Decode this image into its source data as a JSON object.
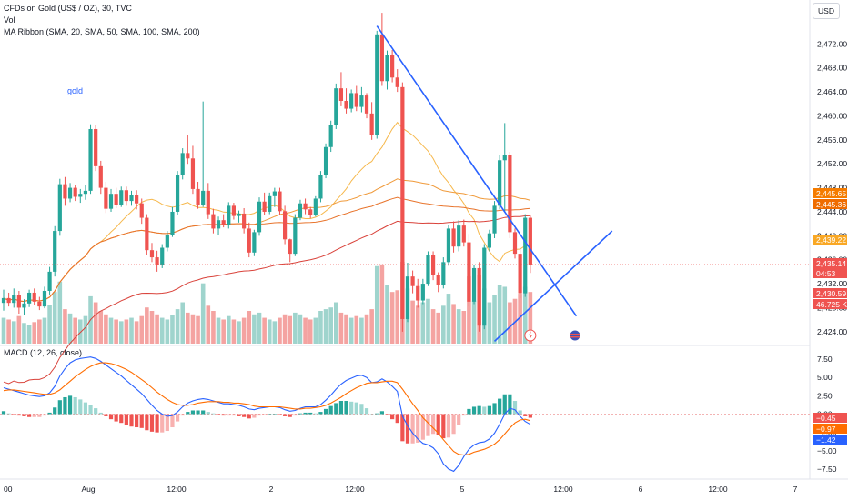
{
  "header": {
    "title": "CFDs on Gold (US$ / OZ), 30, TVC",
    "indicator_vol": "Vol",
    "indicator_ma": "MA Ribbon (SMA, 20, SMA, 50, SMA, 100, SMA, 200)",
    "currency_button": "USD"
  },
  "annotation_text": "gold",
  "colors": {
    "up": "#26a69a",
    "down": "#ef5350",
    "vol_up": "#9fd4cd",
    "vol_down": "#f4a3a1",
    "ma20": "#f6b84c",
    "ma50": "#f09a3a",
    "ma100": "#e8742c",
    "ma200": "#d9423a",
    "trendline": "#2962ff",
    "macd": "#2962ff",
    "signal": "#ff6d00",
    "hist_up": "#26a69a",
    "hist_down": "#ef5350"
  },
  "chart_data": [
    {
      "type": "candlestick",
      "title": "CFDs on Gold (US$ / OZ), 30, TVC",
      "ylim": [
        2422,
        2476
      ],
      "y_ticks": [
        "2,472.00",
        "2,468.00",
        "2,464.00",
        "2,460.00",
        "2,456.00",
        "2,452.00",
        "2,448.00",
        "2,444.00",
        "2,440.00",
        "2,436.00",
        "2,432.00",
        "2,428.00",
        "2,424.00"
      ],
      "x_tick_labels": [
        "00",
        "Aug",
        "12:00",
        "2",
        "12:00",
        "5",
        "12:00",
        "6",
        "12:00",
        "7"
      ],
      "candles": [
        [
          2428.8,
          2431.0,
          2427.5,
          2429.6
        ],
        [
          2429.6,
          2430.5,
          2428.2,
          2428.8
        ],
        [
          2428.8,
          2431.2,
          2428.0,
          2430.1
        ],
        [
          2430.1,
          2430.8,
          2427.0,
          2428.0
        ],
        [
          2428.0,
          2429.4,
          2426.8,
          2428.7
        ],
        [
          2428.7,
          2431.0,
          2428.1,
          2430.5
        ],
        [
          2430.5,
          2431.2,
          2428.5,
          2429.0
        ],
        [
          2429.0,
          2429.8,
          2427.6,
          2428.2
        ],
        [
          2428.2,
          2431.5,
          2427.9,
          2430.8
        ],
        [
          2430.8,
          2434.8,
          2430.2,
          2434.0
        ],
        [
          2434.0,
          2441.6,
          2433.2,
          2440.8
        ],
        [
          2440.8,
          2449.5,
          2440.0,
          2448.6
        ],
        [
          2448.6,
          2449.8,
          2445.0,
          2446.2
        ],
        [
          2446.2,
          2448.8,
          2445.6,
          2448.0
        ],
        [
          2448.0,
          2448.5,
          2445.8,
          2446.5
        ],
        [
          2446.5,
          2447.8,
          2445.5,
          2447.0
        ],
        [
          2447.0,
          2448.5,
          2446.0,
          2447.5
        ],
        [
          2447.5,
          2458.6,
          2447.0,
          2457.8
        ],
        [
          2457.8,
          2458.5,
          2450.8,
          2451.6
        ],
        [
          2451.6,
          2452.5,
          2447.0,
          2448.0
        ],
        [
          2448.0,
          2449.0,
          2443.8,
          2444.5
        ],
        [
          2444.5,
          2447.8,
          2444.0,
          2447.0
        ],
        [
          2447.0,
          2448.0,
          2444.6,
          2445.2
        ],
        [
          2445.2,
          2448.2,
          2444.8,
          2447.6
        ],
        [
          2447.6,
          2448.2,
          2445.0,
          2445.8
        ],
        [
          2445.8,
          2447.5,
          2445.0,
          2446.8
        ],
        [
          2446.8,
          2447.6,
          2444.4,
          2445.4
        ],
        [
          2445.4,
          2446.2,
          2442.0,
          2443.0
        ],
        [
          2443.0,
          2443.6,
          2436.8,
          2437.6
        ],
        [
          2437.6,
          2438.8,
          2435.6,
          2436.4
        ],
        [
          2436.4,
          2437.5,
          2434.0,
          2435.2
        ],
        [
          2435.2,
          2438.6,
          2434.6,
          2438.0
        ],
        [
          2438.0,
          2440.8,
          2437.4,
          2440.2
        ],
        [
          2440.2,
          2444.8,
          2439.8,
          2444.0
        ],
        [
          2444.0,
          2450.8,
          2443.5,
          2450.2
        ],
        [
          2450.2,
          2454.6,
          2449.4,
          2453.8
        ],
        [
          2453.8,
          2456.8,
          2452.0,
          2452.9
        ],
        [
          2452.9,
          2455.0,
          2447.0,
          2447.8
        ],
        [
          2447.8,
          2449.0,
          2444.5,
          2445.2
        ],
        [
          2445.2,
          2462.4,
          2444.8,
          2447.5
        ],
        [
          2447.5,
          2448.8,
          2442.8,
          2443.6
        ],
        [
          2443.6,
          2444.5,
          2440.4,
          2441.2
        ],
        [
          2441.2,
          2443.2,
          2440.2,
          2442.6
        ],
        [
          2442.6,
          2443.6,
          2441.4,
          2441.8
        ],
        [
          2441.8,
          2445.6,
          2441.2,
          2445.0
        ],
        [
          2445.0,
          2445.5,
          2442.7,
          2443.3
        ],
        [
          2443.3,
          2444.2,
          2442.2,
          2443.7
        ],
        [
          2443.7,
          2444.6,
          2440.4,
          2441.2
        ],
        [
          2441.2,
          2442.2,
          2436.4,
          2437.2
        ],
        [
          2437.2,
          2441.0,
          2436.6,
          2440.6
        ],
        [
          2440.6,
          2446.4,
          2440.0,
          2445.7
        ],
        [
          2445.7,
          2447.2,
          2443.4,
          2444.0
        ],
        [
          2444.0,
          2447.2,
          2443.6,
          2446.6
        ],
        [
          2446.6,
          2448.0,
          2444.8,
          2447.4
        ],
        [
          2447.4,
          2448.0,
          2443.4,
          2444.1
        ],
        [
          2444.1,
          2445.0,
          2438.6,
          2439.4
        ],
        [
          2439.4,
          2439.5,
          2435.6,
          2437.0
        ],
        [
          2437.0,
          2443.6,
          2436.6,
          2443.0
        ],
        [
          2443.0,
          2446.0,
          2442.6,
          2445.4
        ],
        [
          2445.4,
          2446.2,
          2443.6,
          2444.4
        ],
        [
          2444.4,
          2444.8,
          2442.9,
          2443.5
        ],
        [
          2443.5,
          2446.6,
          2443.2,
          2446.2
        ],
        [
          2446.2,
          2450.8,
          2445.6,
          2450.2
        ],
        [
          2450.2,
          2455.4,
          2449.6,
          2454.8
        ],
        [
          2454.8,
          2459.2,
          2454.0,
          2458.5
        ],
        [
          2458.5,
          2465.4,
          2457.8,
          2464.6
        ],
        [
          2464.6,
          2467.3,
          2461.6,
          2462.5
        ],
        [
          2462.5,
          2464.6,
          2460.4,
          2461.2
        ],
        [
          2461.2,
          2464.4,
          2460.6,
          2463.8
        ],
        [
          2463.8,
          2465.0,
          2460.8,
          2461.5
        ],
        [
          2461.5,
          2464.8,
          2460.6,
          2463.4
        ],
        [
          2463.4,
          2463.8,
          2459.6,
          2460.4
        ],
        [
          2460.4,
          2462.3,
          2456.0,
          2456.8
        ],
        [
          2456.8,
          2474.2,
          2456.2,
          2473.6
        ],
        [
          2473.6,
          2477.2,
          2465.0,
          2465.8
        ],
        [
          2465.8,
          2470.9,
          2464.4,
          2470.2
        ],
        [
          2470.2,
          2471.0,
          2465.6,
          2466.4
        ],
        [
          2466.4,
          2467.8,
          2464.0,
          2464.8
        ],
        [
          2464.8,
          2465.6,
          2424.0,
          2426.1
        ],
        [
          2426.1,
          2435.5,
          2425.6,
          2433.2
        ],
        [
          2433.2,
          2434.2,
          2430.4,
          2431.6
        ],
        [
          2431.6,
          2432.8,
          2428.0,
          2429.2
        ],
        [
          2429.2,
          2432.8,
          2428.6,
          2432.0
        ],
        [
          2432.0,
          2437.4,
          2431.6,
          2436.8
        ],
        [
          2436.8,
          2437.4,
          2432.6,
          2433.4
        ],
        [
          2433.4,
          2433.9,
          2430.6,
          2431.8
        ],
        [
          2431.8,
          2436.4,
          2431.2,
          2435.6
        ],
        [
          2435.6,
          2441.8,
          2435.0,
          2441.2
        ],
        [
          2441.2,
          2442.4,
          2437.2,
          2438.2
        ],
        [
          2438.2,
          2442.6,
          2437.4,
          2441.7
        ],
        [
          2441.7,
          2442.7,
          2438.2,
          2438.9
        ],
        [
          2438.9,
          2440.3,
          2428.2,
          2429.0
        ],
        [
          2429.0,
          2435.2,
          2428.6,
          2434.6
        ],
        [
          2434.6,
          2435.6,
          2424.0,
          2425.0
        ],
        [
          2425.0,
          2438.6,
          2424.4,
          2438.0
        ],
        [
          2438.0,
          2441.0,
          2437.4,
          2440.4
        ],
        [
          2440.4,
          2445.8,
          2439.6,
          2445.0
        ],
        [
          2445.0,
          2453.4,
          2444.4,
          2452.6
        ],
        [
          2452.6,
          2458.8,
          2444.0,
          2453.4
        ],
        [
          2453.4,
          2454.0,
          2439.6,
          2440.6
        ],
        [
          2440.6,
          2441.2,
          2436.2,
          2437.0
        ],
        [
          2437.0,
          2437.8,
          2429.6,
          2430.4
        ],
        [
          2430.4,
          2443.6,
          2429.8,
          2443.0
        ],
        [
          2443.0,
          2443.4,
          2433.8,
          2435.2
        ]
      ],
      "volumes": [
        30,
        28,
        26,
        32,
        24,
        22,
        25,
        28,
        30,
        45,
        60,
        72,
        40,
        35,
        30,
        28,
        32,
        55,
        48,
        38,
        34,
        30,
        28,
        26,
        28,
        30,
        26,
        32,
        42,
        38,
        34,
        30,
        28,
        33,
        40,
        48,
        36,
        34,
        32,
        70,
        44,
        38,
        30,
        28,
        32,
        28,
        26,
        30,
        38,
        34,
        36,
        30,
        28,
        26,
        30,
        34,
        32,
        36,
        34,
        30,
        28,
        30,
        38,
        40,
        42,
        48,
        36,
        34,
        30,
        32,
        30,
        34,
        40,
        90,
        92,
        68,
        60,
        62,
        95,
        64,
        50,
        44,
        48,
        52,
        40,
        36,
        44,
        58,
        46,
        40,
        38,
        78,
        50,
        80,
        64,
        48,
        56,
        68,
        66,
        48,
        52,
        58,
        66,
        60
      ],
      "indicators": [
        "MA Ribbon SMA 20",
        "SMA 50",
        "SMA 100",
        "SMA 200"
      ],
      "trendlines": [
        {
          "from": [
            73,
            2475.0
          ],
          "to": [
            112,
            2426.6
          ]
        },
        {
          "from": [
            96,
            2422.4
          ],
          "to": [
            119,
            2440.8
          ]
        }
      ],
      "price_tags": [
        {
          "label": "2,445.65",
          "color": "#f57c00"
        },
        {
          "label": "2,445.36",
          "color": "#ef6c00"
        },
        {
          "label": "2,439.22",
          "color": "#f9a825"
        },
        {
          "label": "2,435.14",
          "color": "#ef5350"
        },
        {
          "label": "04:53",
          "color": "#ef5350"
        },
        {
          "label": "2,430.59",
          "color": "#ef5350"
        },
        {
          "label": "46.725 K",
          "color": "#ef5350"
        }
      ]
    },
    {
      "type": "macd",
      "title": "MACD (12, 26, close)",
      "ylim": [
        -8.5,
        9
      ],
      "y_ticks": [
        "7.50",
        "5.00",
        "2.50",
        "0.00",
        "−2.50",
        "−5.00",
        "−7.50"
      ],
      "macd": [
        3.6,
        3.4,
        3.2,
        3.0,
        2.8,
        2.6,
        2.5,
        2.4,
        2.5,
        2.9,
        3.8,
        5.2,
        6.2,
        7.0,
        7.4,
        7.6,
        7.7,
        7.8,
        7.6,
        7.2,
        6.7,
        6.2,
        5.7,
        5.2,
        4.6,
        4.0,
        3.4,
        2.8,
        2.0,
        1.2,
        0.5,
        0.0,
        -0.3,
        -0.2,
        0.3,
        1.0,
        1.5,
        1.8,
        2.0,
        2.1,
        2.0,
        1.8,
        1.6,
        1.4,
        1.4,
        1.3,
        1.2,
        1.0,
        0.7,
        0.6,
        0.8,
        0.9,
        1.0,
        1.0,
        0.9,
        0.6,
        0.4,
        0.5,
        0.8,
        1.0,
        1.0,
        1.0,
        1.3,
        1.9,
        2.6,
        3.4,
        4.1,
        4.6,
        4.9,
        5.2,
        5.3,
        5.0,
        4.3,
        4.4,
        4.8,
        4.4,
        3.8,
        3.1,
        -0.3,
        -1.6,
        -2.6,
        -3.4,
        -4.0,
        -4.2,
        -4.6,
        -5.4,
        -6.8,
        -7.5,
        -7.8,
        -7.0,
        -5.8,
        -4.8,
        -4.2,
        -3.9,
        -3.8,
        -3.4,
        -2.6,
        -1.4,
        0.0,
        0.8,
        0.6,
        -0.3,
        -1.0,
        -1.4
      ],
      "signal": [
        3.2,
        3.3,
        3.3,
        3.2,
        3.1,
        3.0,
        2.9,
        2.8,
        2.7,
        2.7,
        2.9,
        3.3,
        3.9,
        4.5,
        5.1,
        5.6,
        6.1,
        6.5,
        6.8,
        7.0,
        7.0,
        6.9,
        6.7,
        6.4,
        6.1,
        5.7,
        5.2,
        4.7,
        4.2,
        3.6,
        3.0,
        2.5,
        2.0,
        1.6,
        1.3,
        1.2,
        1.2,
        1.3,
        1.5,
        1.6,
        1.7,
        1.7,
        1.7,
        1.6,
        1.6,
        1.5,
        1.5,
        1.4,
        1.3,
        1.1,
        1.0,
        1.0,
        1.0,
        1.0,
        1.0,
        0.9,
        0.8,
        0.7,
        0.7,
        0.8,
        0.8,
        0.9,
        1.0,
        1.2,
        1.5,
        1.9,
        2.3,
        2.8,
        3.2,
        3.6,
        3.9,
        4.2,
        4.3,
        4.3,
        4.4,
        4.5,
        4.5,
        4.3,
        3.4,
        2.4,
        1.4,
        0.5,
        -0.5,
        -1.2,
        -1.9,
        -2.6,
        -3.5,
        -4.3,
        -5.1,
        -5.5,
        -5.6,
        -5.5,
        -5.2,
        -5.0,
        -4.8,
        -4.5,
        -4.1,
        -3.5,
        -2.7,
        -1.9,
        -1.2,
        -0.8,
        -0.7,
        -0.9
      ],
      "legend": "MACD (12, 26, close)",
      "value_tags": [
        {
          "label": "−0.45",
          "color": "#ef5350"
        },
        {
          "label": "−0.97",
          "color": "#ff6d00"
        },
        {
          "label": "−1.42",
          "color": "#2962ff"
        }
      ]
    }
  ]
}
